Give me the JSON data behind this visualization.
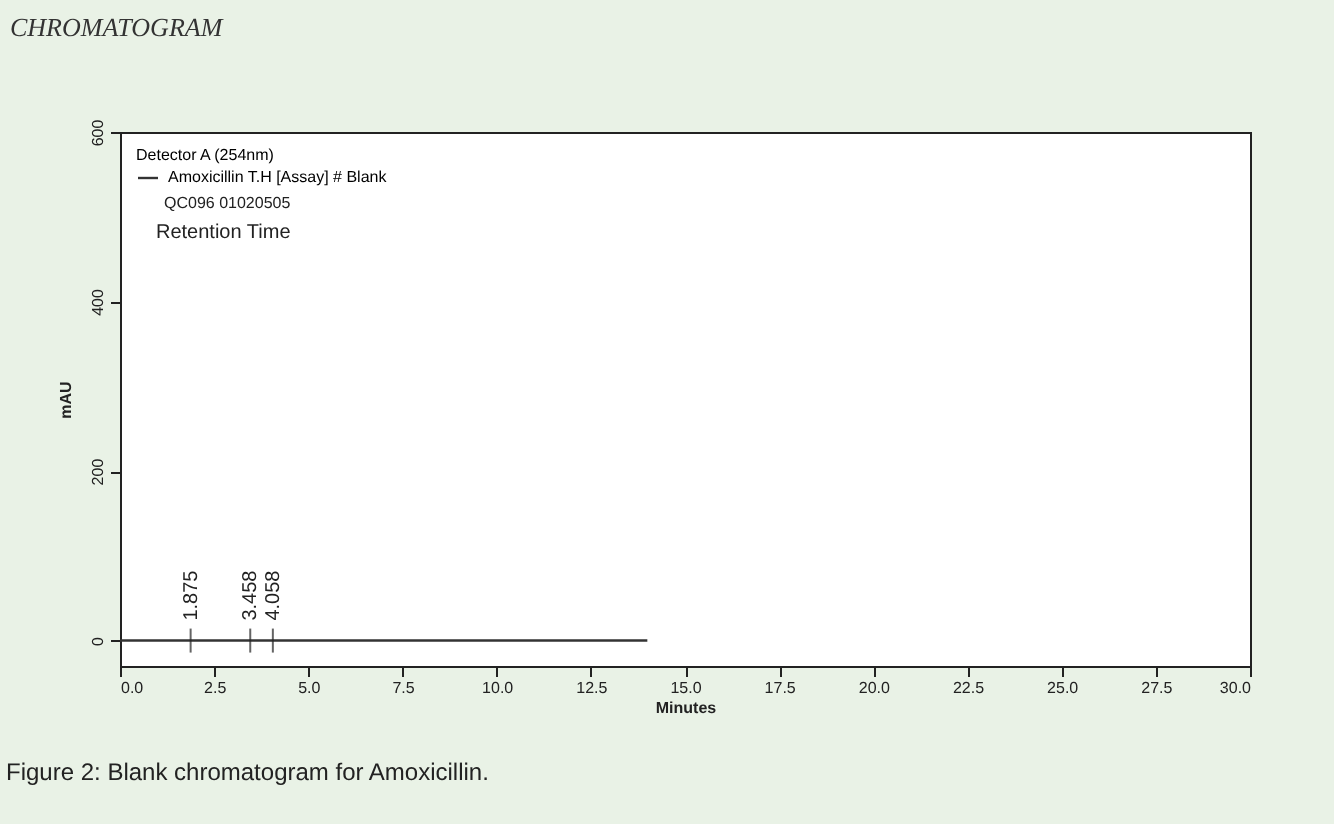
{
  "chart_data": {
    "type": "line",
    "title": "CHROMATOGRAM",
    "xlabel": "Minutes",
    "ylabel": "mAU",
    "legend_title": "Detector A (254nm)",
    "legend": "top left",
    "grid": false,
    "line_style": "solid",
    "marker": "none",
    "xlim": [
      0,
      30
    ],
    "xticks": [
      {
        "value": 0,
        "label": "0.0"
      },
      {
        "value": 2.5,
        "label": "2.5"
      },
      {
        "value": 5,
        "label": "5.0"
      },
      {
        "value": 7.5,
        "label": "7.5"
      },
      {
        "value": 10,
        "label": "10.0"
      },
      {
        "value": 12.5,
        "label": "12.5"
      },
      {
        "value": 15,
        "label": "15.0"
      },
      {
        "value": 17.5,
        "label": "17.5"
      },
      {
        "value": 20,
        "label": "20.0"
      },
      {
        "value": 22.5,
        "label": "22.5"
      },
      {
        "value": 25,
        "label": "25.0"
      },
      {
        "value": 27.5,
        "label": "27.5"
      },
      {
        "value": 30,
        "label": "30.0"
      }
    ],
    "ylim": [
      -30,
      600
    ],
    "yticks": [
      0,
      200,
      400,
      600
    ],
    "x": [
      0,
      14
    ],
    "series": [
      {
        "name": "Amoxicillin T.H [Assay] # Blank",
        "color": "#333333",
        "values": [
          0,
          0
        ]
      }
    ],
    "annotations": [
      {
        "text": "1.875",
        "x": 1.875,
        "y": 0
      },
      {
        "text": "3.458",
        "x": 3.458,
        "y": 0
      },
      {
        "text": "4.058",
        "x": 4.058,
        "y": 0
      },
      "QC096 01020505",
      "Retention Time",
      "Figure 2: Blank chromatogram for Amoxicillin."
    ]
  }
}
